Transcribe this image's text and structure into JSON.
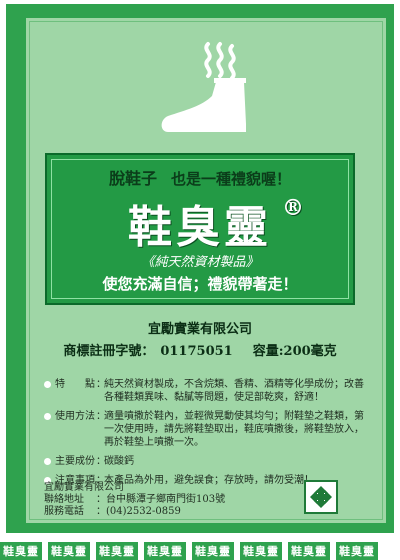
{
  "header": {
    "tagline_a": "脫鞋子",
    "tagline_b": "也是一種禮貌喔！"
  },
  "brand": {
    "name": "鞋臭靈",
    "registered": "®",
    "subtitle": "《純天然資材製品》",
    "slogan": "使您充滿自信；禮貌帶著走！"
  },
  "company": {
    "name": "宜勵實業有限公司",
    "reg_label": "商標註冊字號：",
    "reg_number": "01175051",
    "capacity": "容量:200毫克"
  },
  "details": [
    {
      "label": "特　　點",
      "text": "純天然資材製成，不含烷類、香精、酒精等化學成份；改善各種鞋類異味、黏膩等問題，使足部乾爽，舒適！"
    },
    {
      "label": "使用方法",
      "text": "適量噴撒於鞋內，並輕微晃動使其均勻；附鞋墊之鞋類，第一次使用時，請先將鞋墊取出，鞋底噴撒後，將鞋墊放入，再於鞋墊上噴撒一次。"
    },
    {
      "label": "主要成份",
      "text": "碳酸鈣"
    },
    {
      "label": "注意事項",
      "text": "本產品為外用，避免誤食；存放時，請勿受潮！"
    }
  ],
  "contact": {
    "company": "宜勵實業有限公司",
    "address_label": "聯絡地址",
    "address": "：台中縣潭子鄉南門街103號",
    "phone_label": "服務電話",
    "phone": "：(04)2532-0859"
  },
  "footer_strip": [
    "鞋臭靈",
    "鞋臭靈",
    "鞋臭靈",
    "鞋臭靈",
    "鞋臭靈",
    "鞋臭靈",
    "鞋臭靈",
    "鞋臭靈"
  ],
  "colors": {
    "outer_green": "#2fa24e",
    "inner_green": "#9fd6a6",
    "box_green": "#239a45"
  },
  "icons": [
    "shoe-icon",
    "recycle-icon"
  ]
}
